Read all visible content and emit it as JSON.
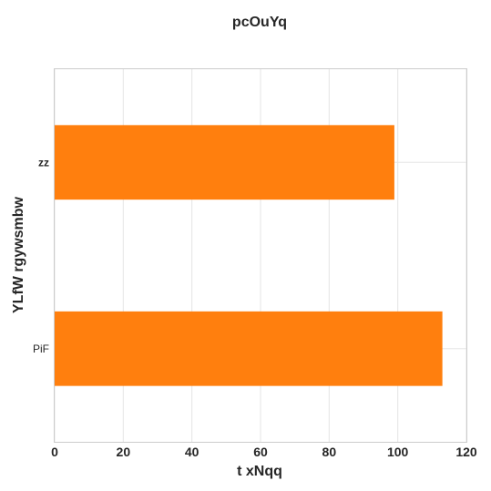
{
  "chart_data": {
    "type": "bar",
    "orientation": "horizontal",
    "title": "pcOuYq",
    "xlabel": "t xNqq",
    "ylabel": "YLfW rgywsmbw",
    "categories": [
      "PiF",
      "zz"
    ],
    "category_bold": [
      false,
      true
    ],
    "values": [
      113,
      99
    ],
    "xlim": [
      0,
      120
    ],
    "xticks": [
      0,
      20,
      40,
      60,
      80,
      100,
      120
    ],
    "grid": true,
    "bar_color": "#ff7f0e"
  }
}
